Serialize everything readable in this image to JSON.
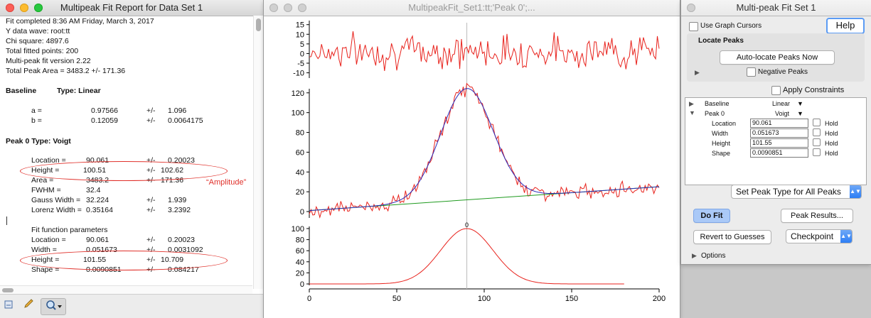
{
  "report": {
    "title": "Multipeak Fit Report for Data Set 1",
    "lines": [
      "Fit completed 8:36 AM Friday, March 3, 2017",
      "Y data wave: root:tt",
      "Chi square: 4897.6",
      "Total fitted points: 200",
      "Multi-peak fit version 2.22",
      "Total Peak Area = 3483.2 +/- 171.36"
    ],
    "baseline_heading": "Baseline",
    "baseline_type": "Type: Linear",
    "baseline_rows": [
      {
        "name": "a =",
        "value": "0.97566",
        "pm": "+/-",
        "err": "1.096"
      },
      {
        "name": "b =",
        "value": "0.12059",
        "pm": "+/-",
        "err": "0.0064175"
      }
    ],
    "peak_heading": "Peak 0 Type: Voigt",
    "peak_rows": [
      {
        "name": "Location =",
        "value": "90.061",
        "pm": "+/-",
        "err": "0.20023"
      },
      {
        "name": "Height =",
        "value": "100.51",
        "pm": "+/-",
        "err": "102.62"
      },
      {
        "name": "Area =",
        "value": "3483.2",
        "pm": "+/-",
        "err": "171.36"
      },
      {
        "name": "FWHM =",
        "value": "32.4",
        "pm": "",
        "err": ""
      },
      {
        "name": "Gauss Width =",
        "value": "32.224",
        "pm": "+/-",
        "err": "1.939"
      },
      {
        "name": "Lorenz Width =",
        "value": "0.35164",
        "pm": "+/-",
        "err": "3.2392"
      }
    ],
    "fit_heading": "Fit function parameters",
    "fit_rows": [
      {
        "name": "Location =",
        "value": "90.061",
        "pm": "+/-",
        "err": "0.20023"
      },
      {
        "name": "Width =",
        "value": "0.051673",
        "pm": "+/-",
        "err": "0.0031092"
      },
      {
        "name": "Height =",
        "value": "101.55",
        "pm": "+/-",
        "err": "10.709"
      },
      {
        "name": "Shape =",
        "value": "0.0090851",
        "pm": "+/-",
        "err": "0.084217"
      }
    ],
    "annotation": "“Amplitude”"
  },
  "graph": {
    "title": "MultipeakFit_Set1:tt;'Peak 0';...",
    "peak_marker": "0"
  },
  "panel": {
    "title": "Multi-peak Fit Set 1",
    "use_cursors": "Use Graph Cursors",
    "help": "Help",
    "locate_heading": "Locate Peaks",
    "auto_locate": "Auto-locate Peaks Now",
    "negative_peaks": "Negative Peaks",
    "apply_constraints": "Apply Constraints",
    "baseline_label": "Baseline",
    "baseline_type": "Linear",
    "peak_label": "Peak 0",
    "peak_type": "Voigt",
    "params": [
      {
        "name": "Location",
        "value": "90.061",
        "hold": "Hold"
      },
      {
        "name": "Width",
        "value": "0.051673",
        "hold": "Hold"
      },
      {
        "name": "Height",
        "value": "101.55",
        "hold": "Hold"
      },
      {
        "name": "Shape",
        "value": "0.0090851",
        "hold": "Hold"
      }
    ],
    "set_peak_type": "Set Peak Type for All Peaks",
    "do_fit": "Do Fit",
    "peak_results": "Peak Results...",
    "revert": "Revert to Guesses",
    "checkpoint": "Checkpoint",
    "options": "Options"
  },
  "colors": {
    "data": "#e8221c",
    "fit": "#2a2ab8",
    "baseline": "#1e9a1e",
    "annotation": "#e0302a",
    "accent": "#2d7ef5"
  },
  "chart_data": [
    {
      "type": "line",
      "title": "",
      "xlabel": "",
      "ylabel": "",
      "xlim": [
        0,
        200
      ],
      "ylim": [
        -12,
        16
      ],
      "y_ticks": [
        -10,
        -5,
        0,
        5,
        10,
        15
      ],
      "series": [
        {
          "name": "",
          "description": "fit residuals, noise roughly between -8 and 13"
        }
      ]
    },
    {
      "type": "line",
      "title": "",
      "xlabel": "",
      "ylabel": "",
      "xlim": [
        0,
        200
      ],
      "ylim": [
        -5,
        122
      ],
      "y_ticks": [
        0,
        20,
        40,
        60,
        80,
        100,
        120
      ],
      "series": [
        {
          "name": "",
          "role": "data",
          "peak_location": 90,
          "peak_height": 113
        },
        {
          "name": "",
          "role": "fit",
          "peak_location": 90.061,
          "height": 101.55
        },
        {
          "name": "",
          "role": "baseline",
          "a": 0.97566,
          "b": 0.12059
        }
      ]
    },
    {
      "type": "line",
      "title": "",
      "xlabel": "",
      "ylabel": "",
      "xlim": [
        0,
        200
      ],
      "ylim": [
        0,
        100
      ],
      "x_ticks": [
        0,
        50,
        100,
        150,
        200
      ],
      "y_ticks": [
        0,
        20,
        40,
        60,
        80,
        100
      ],
      "series": [
        {
          "name": "",
          "role": "peak 0",
          "peak_location": 90,
          "peak_height": 100
        }
      ]
    }
  ]
}
